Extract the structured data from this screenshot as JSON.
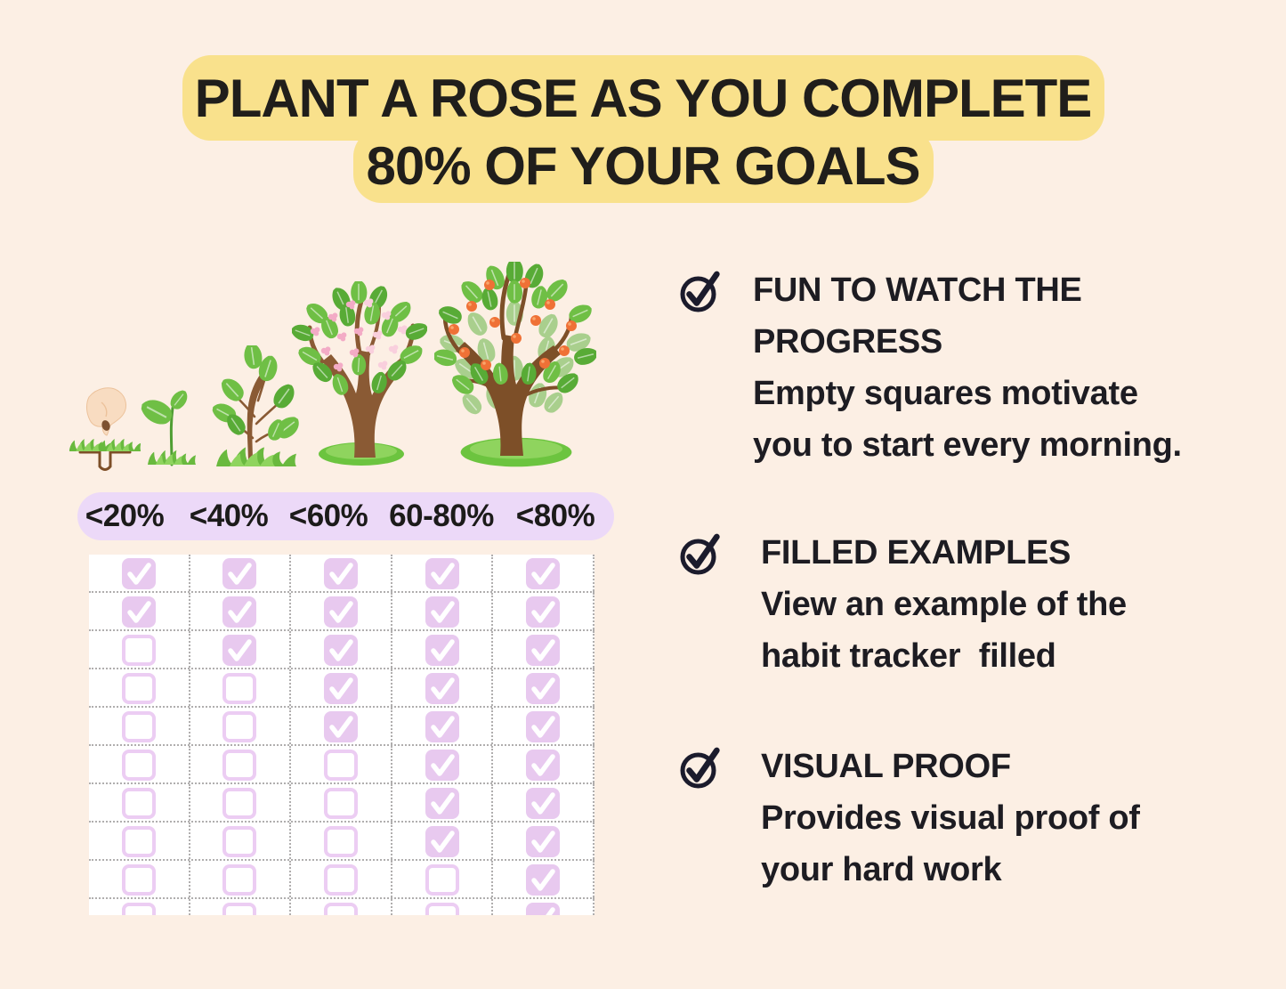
{
  "title": {
    "line1": "PLANT A ROSE AS YOU COMPLETE",
    "line2": "80% OF YOUR GOALS"
  },
  "stages": {
    "labels": [
      "<20%",
      "<40%",
      "<60%",
      "60-80%",
      "<80%"
    ],
    "plants": [
      "hand-planting-seed",
      "sprout",
      "sapling",
      "blossoming-tree",
      "fruit-tree"
    ]
  },
  "grid": {
    "columns": 5,
    "checked_symbol": "checkmark",
    "partial_last_row": true,
    "rows": [
      [
        1,
        1,
        1,
        1,
        1
      ],
      [
        1,
        1,
        1,
        1,
        1
      ],
      [
        0,
        1,
        1,
        1,
        1
      ],
      [
        0,
        0,
        1,
        1,
        1
      ],
      [
        0,
        0,
        1,
        1,
        1
      ],
      [
        0,
        0,
        0,
        1,
        1
      ],
      [
        0,
        0,
        0,
        1,
        1
      ],
      [
        0,
        0,
        0,
        1,
        1
      ],
      [
        0,
        0,
        0,
        0,
        1
      ],
      [
        0,
        0,
        0,
        0,
        1
      ]
    ]
  },
  "benefits": [
    {
      "lines": [
        "FUN TO WATCH THE",
        "PROGRESS",
        "Empty squares motivate",
        "you to start every morning."
      ]
    },
    {
      "lines": [
        "FILLED EXAMPLES",
        "View an example of the",
        "habit tracker  filled"
      ]
    },
    {
      "lines": [
        "VISUAL PROOF",
        "Provides visual proof of",
        "your hard work"
      ]
    }
  ],
  "colors": {
    "background_peach": "#fcefe4",
    "banner_yellow": "#f9e18c",
    "label_lavender": "#ecd9f8",
    "checkbox_purple": "#e8c9ef",
    "checkbox_border": "#eccdf3",
    "grid_dots": "#b0aeae",
    "text_dark": "#1d1c1b",
    "icon_ink": "#1b1b2c"
  }
}
